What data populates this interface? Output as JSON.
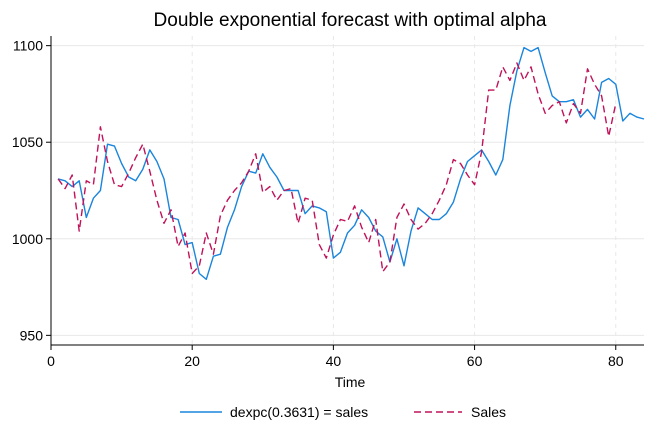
{
  "chart_data": {
    "type": "line",
    "title": "Double exponential forecast with optimal alpha",
    "xlabel": "Time",
    "ylabel": "",
    "xlim": [
      0,
      84
    ],
    "ylim": [
      945,
      1105
    ],
    "xticks": [
      0,
      20,
      40,
      60,
      80
    ],
    "yticks": [
      950,
      1000,
      1050,
      1100
    ],
    "grid": true,
    "legend_position": "bottom",
    "colors": {
      "forecast": "#1a85dc",
      "sales": "#c0125a",
      "grid": "#e8e8e8",
      "axis": "#000000"
    },
    "series": [
      {
        "name": "dexpc(0.3631) = sales",
        "style": "solid",
        "x": [
          1,
          2,
          3,
          4,
          5,
          6,
          7,
          8,
          9,
          10,
          11,
          12,
          13,
          14,
          15,
          16,
          17,
          18,
          19,
          20,
          21,
          22,
          23,
          24,
          25,
          26,
          27,
          28,
          29,
          30,
          31,
          32,
          33,
          34,
          35,
          36,
          37,
          38,
          39,
          40,
          41,
          42,
          43,
          44,
          45,
          46,
          47,
          48,
          49,
          50,
          51,
          52,
          53,
          54,
          55,
          56,
          57,
          58,
          59,
          60,
          61,
          62,
          63,
          64,
          65,
          66,
          67,
          68,
          69,
          70,
          71,
          72,
          73,
          74,
          75,
          76,
          77,
          78,
          79,
          80,
          81,
          82,
          83,
          84
        ],
        "values": [
          1031,
          1030,
          1027,
          1030,
          1011,
          1021,
          1025,
          1049,
          1048,
          1039,
          1032,
          1030,
          1036,
          1046,
          1040,
          1031,
          1011,
          1010,
          997,
          998,
          982,
          979,
          991,
          992,
          1006,
          1015,
          1027,
          1035,
          1034,
          1044,
          1037,
          1032,
          1025,
          1025,
          1025,
          1013,
          1017,
          1016,
          1014,
          990,
          993,
          1003,
          1007,
          1015,
          1011,
          1004,
          1001,
          988,
          1000,
          986,
          1004,
          1016,
          1013,
          1010,
          1010,
          1013,
          1019,
          1031,
          1040,
          1043,
          1046,
          1040,
          1033,
          1041,
          1069,
          1087,
          1099,
          1097,
          1099,
          1086,
          1074,
          1071,
          1071,
          1072,
          1063,
          1067,
          1062,
          1081,
          1083,
          1080,
          1061,
          1065,
          1063,
          1062
        ]
      },
      {
        "name": "Sales",
        "style": "dashed",
        "x": [
          1,
          2,
          3,
          4,
          5,
          6,
          7,
          8,
          9,
          10,
          11,
          12,
          13,
          14,
          15,
          16,
          17,
          18,
          19,
          20,
          21,
          22,
          23,
          24,
          25,
          26,
          27,
          28,
          29,
          30,
          31,
          32,
          33,
          34,
          35,
          36,
          37,
          38,
          39,
          40,
          41,
          42,
          43,
          44,
          45,
          46,
          47,
          48,
          49,
          50,
          51,
          52,
          53,
          54,
          55,
          56,
          57,
          58,
          59,
          60,
          61,
          62,
          63,
          64,
          65,
          66,
          67,
          68,
          69,
          70,
          71,
          72,
          73,
          74,
          75,
          76,
          77,
          78,
          79,
          80
        ],
        "values": [
          1031,
          1026,
          1033,
          1004,
          1030,
          1028,
          1058,
          1040,
          1028,
          1027,
          1034,
          1042,
          1049,
          1035,
          1020,
          1008,
          1015,
          996,
          1003,
          982,
          986,
          1003,
          992,
          1012,
          1020,
          1025,
          1029,
          1035,
          1044,
          1024,
          1027,
          1020,
          1025,
          1026,
          1008,
          1021,
          1020,
          997,
          990,
          1002,
          1010,
          1009,
          1017,
          1006,
          998,
          1010,
          983,
          988,
          1011,
          1018,
          1010,
          1005,
          1008,
          1013,
          1020,
          1028,
          1041,
          1039,
          1033,
          1028,
          1045,
          1077,
          1077,
          1089,
          1082,
          1091,
          1082,
          1089,
          1075,
          1065,
          1069,
          1071,
          1060,
          1070,
          1065,
          1088,
          1080,
          1074,
          1053,
          1070
        ]
      }
    ]
  }
}
